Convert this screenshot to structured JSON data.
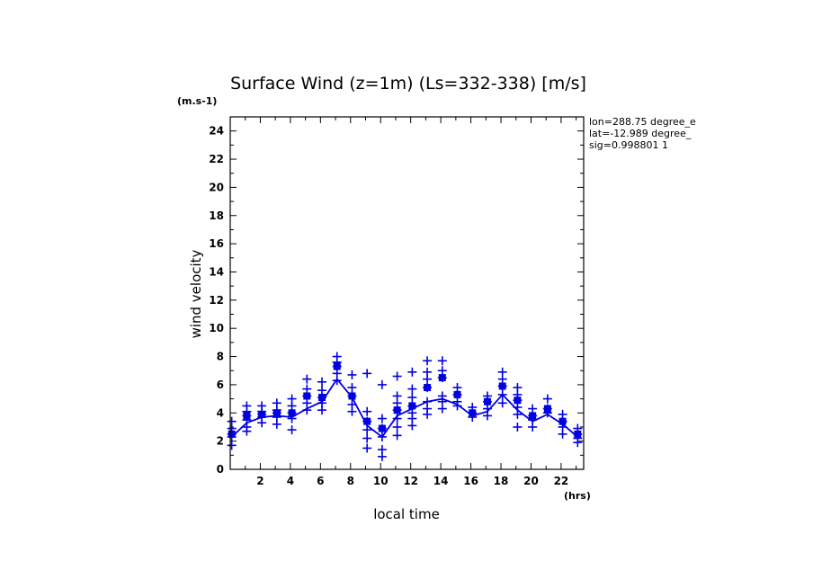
{
  "chart_data": {
    "type": "scatter",
    "title": "Surface Wind (z=1m) (Ls=332-338) [m/s]",
    "y_unit": "(m.s-1)",
    "x_unit": "(hrs)",
    "xlabel": "local time",
    "ylabel": "wind velocity",
    "xlim": [
      0,
      23.5
    ],
    "ylim": [
      0,
      25
    ],
    "x_ticks": [
      2,
      4,
      6,
      8,
      10,
      12,
      14,
      16,
      18,
      20,
      22
    ],
    "y_ticks": [
      0,
      2,
      4,
      6,
      8,
      10,
      12,
      14,
      16,
      18,
      20,
      22,
      24
    ],
    "info": [
      "lon=288.75 degree_e",
      "lat=-12.989 degree_",
      "sig=0.998801 1"
    ],
    "color": "#0000e0",
    "hours": [
      0.1,
      1.1,
      2.1,
      3.1,
      4.1,
      5.1,
      6.1,
      7.1,
      8.1,
      9.1,
      10.1,
      11.1,
      12.1,
      13.1,
      14.1,
      15.1,
      16.1,
      17.1,
      18.1,
      19.1,
      20.1,
      21.1,
      22.1,
      23.1
    ],
    "series": [
      {
        "name": "mean",
        "marker": "line+square",
        "values": [
          2.3,
          3.3,
          3.7,
          3.8,
          3.7,
          4.3,
          4.8,
          6.4,
          5.1,
          3.1,
          2.3,
          3.8,
          4.3,
          4.8,
          5.0,
          4.6,
          3.8,
          4.1,
          5.3,
          4.2,
          3.4,
          3.9,
          3.2,
          2.3
        ]
      },
      {
        "name": "samples",
        "marker": "plus",
        "points": [
          [
            0.1,
            3.4
          ],
          [
            0.1,
            2.9
          ],
          [
            0.1,
            2.3
          ],
          [
            0.1,
            1.7
          ],
          [
            0.1,
            2.5
          ],
          [
            1.1,
            4.5
          ],
          [
            1.1,
            4.1
          ],
          [
            1.1,
            3.5
          ],
          [
            1.1,
            3.0
          ],
          [
            1.1,
            2.7
          ],
          [
            1.1,
            3.8
          ],
          [
            2.1,
            4.5
          ],
          [
            2.1,
            4.1
          ],
          [
            2.1,
            3.7
          ],
          [
            2.1,
            3.3
          ],
          [
            2.1,
            3.9
          ],
          [
            3.1,
            4.7
          ],
          [
            3.1,
            4.2
          ],
          [
            3.1,
            3.7
          ],
          [
            3.1,
            3.2
          ],
          [
            3.1,
            4.0
          ],
          [
            4.1,
            5.0
          ],
          [
            4.1,
            4.5
          ],
          [
            4.1,
            4.0
          ],
          [
            4.1,
            3.6
          ],
          [
            4.1,
            2.8
          ],
          [
            5.1,
            6.4
          ],
          [
            5.1,
            5.7
          ],
          [
            5.1,
            5.2
          ],
          [
            5.1,
            4.7
          ],
          [
            5.1,
            4.2
          ],
          [
            6.1,
            6.2
          ],
          [
            6.1,
            5.6
          ],
          [
            6.1,
            5.1
          ],
          [
            6.1,
            4.7
          ],
          [
            6.1,
            4.2
          ],
          [
            7.1,
            8.0
          ],
          [
            7.1,
            7.6
          ],
          [
            7.1,
            7.3
          ],
          [
            7.1,
            6.8
          ],
          [
            7.1,
            6.3
          ],
          [
            8.1,
            6.7
          ],
          [
            8.1,
            5.8
          ],
          [
            8.1,
            5.2
          ],
          [
            8.1,
            4.6
          ],
          [
            8.1,
            4.1
          ],
          [
            9.1,
            6.8
          ],
          [
            9.1,
            4.1
          ],
          [
            9.1,
            3.4
          ],
          [
            9.1,
            2.8
          ],
          [
            9.1,
            2.2
          ],
          [
            9.1,
            1.5
          ],
          [
            10.1,
            6.0
          ],
          [
            10.1,
            3.6
          ],
          [
            10.1,
            2.9
          ],
          [
            10.1,
            2.3
          ],
          [
            10.1,
            1.4
          ],
          [
            10.1,
            0.9
          ],
          [
            11.1,
            6.6
          ],
          [
            11.1,
            5.2
          ],
          [
            11.1,
            4.7
          ],
          [
            11.1,
            4.2
          ],
          [
            11.1,
            3.6
          ],
          [
            11.1,
            3.0
          ],
          [
            11.1,
            2.4
          ],
          [
            12.1,
            6.9
          ],
          [
            12.1,
            5.7
          ],
          [
            12.1,
            5.1
          ],
          [
            12.1,
            4.5
          ],
          [
            12.1,
            4.0
          ],
          [
            12.1,
            3.6
          ],
          [
            12.1,
            3.1
          ],
          [
            13.1,
            7.7
          ],
          [
            13.1,
            6.9
          ],
          [
            13.1,
            6.4
          ],
          [
            13.1,
            5.8
          ],
          [
            13.1,
            4.8
          ],
          [
            13.1,
            4.3
          ],
          [
            13.1,
            3.9
          ],
          [
            14.1,
            7.7
          ],
          [
            14.1,
            7.0
          ],
          [
            14.1,
            6.5
          ],
          [
            14.1,
            5.2
          ],
          [
            14.1,
            4.8
          ],
          [
            14.1,
            4.3
          ],
          [
            15.1,
            5.8
          ],
          [
            15.1,
            5.3
          ],
          [
            15.1,
            4.8
          ],
          [
            15.1,
            4.5
          ],
          [
            16.1,
            4.4
          ],
          [
            16.1,
            4.0
          ],
          [
            16.1,
            3.7
          ],
          [
            17.1,
            5.2
          ],
          [
            17.1,
            4.8
          ],
          [
            17.1,
            4.3
          ],
          [
            17.1,
            3.8
          ],
          [
            18.1,
            6.9
          ],
          [
            18.1,
            6.4
          ],
          [
            18.1,
            5.9
          ],
          [
            18.1,
            5.3
          ],
          [
            18.1,
            4.7
          ],
          [
            19.1,
            5.8
          ],
          [
            19.1,
            5.3
          ],
          [
            19.1,
            4.9
          ],
          [
            19.1,
            4.4
          ],
          [
            19.1,
            3.9
          ],
          [
            19.1,
            3.0
          ],
          [
            20.1,
            4.3
          ],
          [
            20.1,
            3.8
          ],
          [
            20.1,
            3.5
          ],
          [
            20.1,
            3.0
          ],
          [
            21.1,
            5.0
          ],
          [
            21.1,
            4.3
          ],
          [
            21.1,
            4.0
          ],
          [
            22.1,
            3.9
          ],
          [
            22.1,
            3.4
          ],
          [
            22.1,
            3.0
          ],
          [
            22.1,
            2.5
          ],
          [
            23.1,
            2.9
          ],
          [
            23.1,
            2.5
          ],
          [
            23.1,
            2.2
          ],
          [
            23.1,
            1.9
          ]
        ]
      }
    ]
  }
}
